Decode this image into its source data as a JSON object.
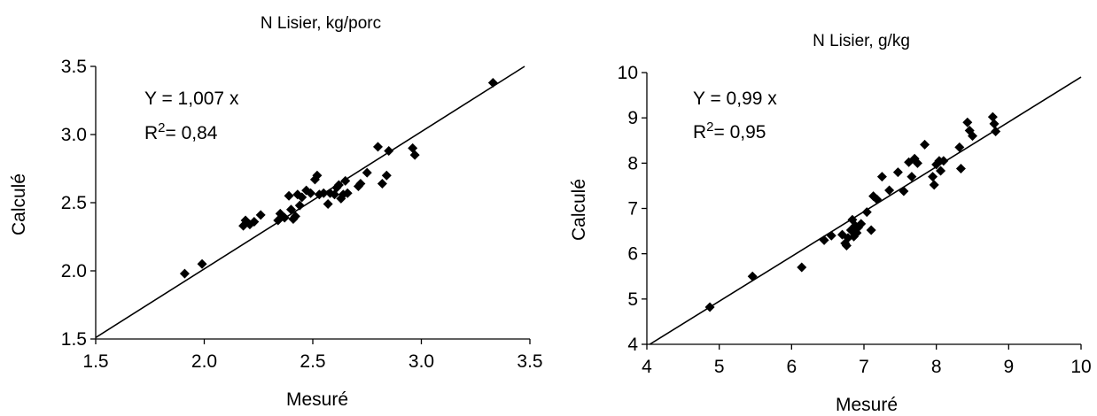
{
  "chart_data": [
    {
      "type": "scatter",
      "title": "N Lisier, kg/porc",
      "xlabel": "Mesuré",
      "ylabel": "Calculé",
      "xlim": [
        1.5,
        3.5
      ],
      "ylim": [
        1.5,
        3.5
      ],
      "xticks": [
        "1.5",
        "2.0",
        "2.5",
        "3.0",
        "3.5"
      ],
      "yticks": [
        "1.5",
        "2.0",
        "2.5",
        "3.0",
        "3.5"
      ],
      "annotation_line1": "Y = 1,007 x",
      "annotation_r2_prefix": "R",
      "annotation_r2_sup": "2",
      "annotation_r2_value": "= 0,84",
      "regression_slope": 1.007,
      "marker_color": "#000000",
      "points": [
        [
          1.91,
          1.98
        ],
        [
          1.99,
          2.05
        ],
        [
          2.18,
          2.33
        ],
        [
          2.19,
          2.37
        ],
        [
          2.21,
          2.34
        ],
        [
          2.23,
          2.36
        ],
        [
          2.26,
          2.41
        ],
        [
          2.34,
          2.37
        ],
        [
          2.35,
          2.42
        ],
        [
          2.37,
          2.39
        ],
        [
          2.39,
          2.55
        ],
        [
          2.4,
          2.45
        ],
        [
          2.41,
          2.38
        ],
        [
          2.42,
          2.4
        ],
        [
          2.43,
          2.56
        ],
        [
          2.44,
          2.48
        ],
        [
          2.45,
          2.54
        ],
        [
          2.47,
          2.59
        ],
        [
          2.49,
          2.57
        ],
        [
          2.51,
          2.67
        ],
        [
          2.52,
          2.7
        ],
        [
          2.53,
          2.56
        ],
        [
          2.55,
          2.57
        ],
        [
          2.57,
          2.49
        ],
        [
          2.58,
          2.57
        ],
        [
          2.6,
          2.56
        ],
        [
          2.61,
          2.61
        ],
        [
          2.62,
          2.63
        ],
        [
          2.63,
          2.53
        ],
        [
          2.64,
          2.56
        ],
        [
          2.65,
          2.66
        ],
        [
          2.66,
          2.57
        ],
        [
          2.71,
          2.62
        ],
        [
          2.72,
          2.64
        ],
        [
          2.75,
          2.72
        ],
        [
          2.8,
          2.91
        ],
        [
          2.82,
          2.64
        ],
        [
          2.84,
          2.7
        ],
        [
          2.85,
          2.88
        ],
        [
          2.96,
          2.9
        ],
        [
          2.97,
          2.85
        ],
        [
          3.33,
          3.38
        ]
      ]
    },
    {
      "type": "scatter",
      "title": "N Lisier, g/kg",
      "xlabel": "Mesuré",
      "ylabel": "Calculé",
      "xlim": [
        4,
        10
      ],
      "ylim": [
        4,
        10
      ],
      "xticks": [
        "4",
        "5",
        "6",
        "7",
        "8",
        "9",
        "10"
      ],
      "yticks": [
        "4",
        "5",
        "6",
        "7",
        "8",
        "9",
        "10"
      ],
      "annotation_line1": "Y = 0,99 x",
      "annotation_r2_prefix": "R",
      "annotation_r2_sup": "2",
      "annotation_r2_value": "= 0,95",
      "regression_slope": 0.99,
      "marker_color": "#000000",
      "points": [
        [
          4.87,
          4.82
        ],
        [
          5.46,
          5.5
        ],
        [
          6.14,
          5.7
        ],
        [
          6.45,
          6.3
        ],
        [
          6.55,
          6.4
        ],
        [
          6.7,
          6.42
        ],
        [
          6.74,
          6.23
        ],
        [
          6.76,
          6.18
        ],
        [
          6.78,
          6.35
        ],
        [
          6.82,
          6.52
        ],
        [
          6.84,
          6.75
        ],
        [
          6.86,
          6.38
        ],
        [
          6.88,
          6.62
        ],
        [
          6.9,
          6.46
        ],
        [
          6.92,
          6.58
        ],
        [
          6.96,
          6.66
        ],
        [
          7.04,
          6.92
        ],
        [
          7.1,
          6.52
        ],
        [
          7.13,
          7.27
        ],
        [
          7.18,
          7.2
        ],
        [
          7.25,
          7.7
        ],
        [
          7.35,
          7.4
        ],
        [
          7.47,
          7.8
        ],
        [
          7.55,
          7.38
        ],
        [
          7.62,
          8.02
        ],
        [
          7.66,
          7.7
        ],
        [
          7.7,
          8.1
        ],
        [
          7.74,
          8.0
        ],
        [
          7.84,
          8.41
        ],
        [
          7.95,
          7.7
        ],
        [
          7.97,
          7.52
        ],
        [
          8.0,
          7.97
        ],
        [
          8.04,
          8.05
        ],
        [
          8.06,
          7.83
        ],
        [
          8.1,
          8.05
        ],
        [
          8.32,
          8.35
        ],
        [
          8.34,
          7.88
        ],
        [
          8.43,
          8.9
        ],
        [
          8.46,
          8.72
        ],
        [
          8.5,
          8.6
        ],
        [
          8.78,
          9.02
        ],
        [
          8.8,
          8.87
        ],
        [
          8.82,
          8.7
        ]
      ]
    }
  ]
}
